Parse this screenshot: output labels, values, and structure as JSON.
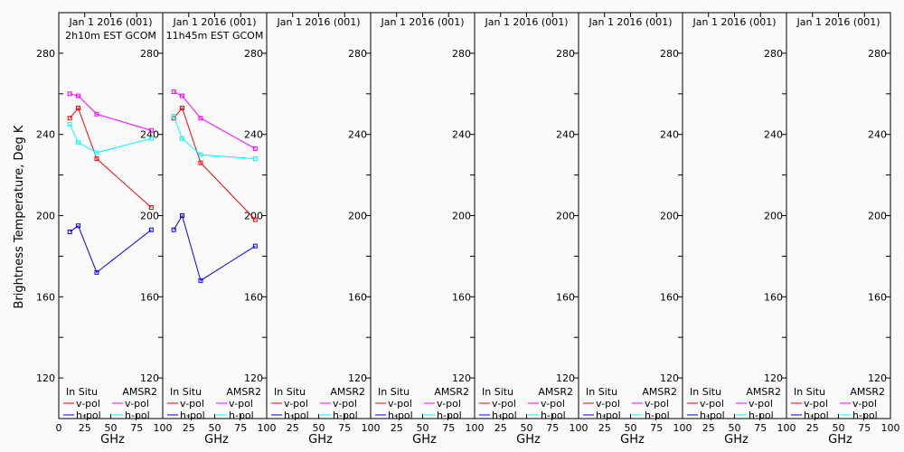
{
  "chart_data": {
    "type": "line",
    "ylabel": "Brightness Temperature, Deg K",
    "xlabel": "GHz",
    "xlim": [
      0,
      100
    ],
    "ylim": [
      100,
      300
    ],
    "xticks": [
      0,
      25,
      50,
      75,
      100
    ],
    "xtick_labels": [
      "0",
      "25",
      "50",
      "75",
      "100"
    ],
    "yticks": [
      120,
      160,
      200,
      240,
      280
    ],
    "ytick_labels": [
      "120",
      "160",
      "200",
      "240",
      "280"
    ],
    "legend": {
      "group_labels": [
        "In Situ",
        "AMSR2"
      ],
      "entries": [
        {
          "group": 0,
          "label": "v-pol",
          "color": "#ff0000"
        },
        {
          "group": 0,
          "label": "h-pol",
          "color": "#0000ff"
        },
        {
          "group": 1,
          "label": "v-pol",
          "color": "#ff00ff"
        },
        {
          "group": 1,
          "label": "h-pol",
          "color": "#00ffff"
        }
      ]
    },
    "panels": [
      {
        "title": "Jan 1 2016 (001)",
        "subtitle": "2h10m EST GCOM",
        "series": [
          {
            "name": "AMSR2 v-pol",
            "color": "#ff00ff",
            "x": [
              10.65,
              18.7,
              36.5,
              89
            ],
            "y": [
              260,
              259,
              250,
              242
            ]
          },
          {
            "name": "In Situ v-pol",
            "color": "#ff0000",
            "x": [
              10.65,
              18.7,
              36.5,
              89
            ],
            "y": [
              248,
              253,
              228,
              204
            ]
          },
          {
            "name": "AMSR2 h-pol",
            "color": "#00ffff",
            "x": [
              10.65,
              18.7,
              36.5,
              89
            ],
            "y": [
              245,
              236,
              231,
              238
            ]
          },
          {
            "name": "In Situ h-pol",
            "color": "#0000ff",
            "x": [
              10.65,
              18.7,
              36.5,
              89
            ],
            "y": [
              192,
              195,
              172,
              193
            ]
          }
        ]
      },
      {
        "title": "Jan 1 2016 (001)",
        "subtitle": "11h45m EST GCOM",
        "series": [
          {
            "name": "AMSR2 v-pol",
            "color": "#ff00ff",
            "x": [
              10.65,
              18.7,
              36.5,
              89
            ],
            "y": [
              261,
              259,
              248,
              233
            ]
          },
          {
            "name": "In Situ v-pol",
            "color": "#ff0000",
            "x": [
              10.65,
              18.7,
              36.5,
              89
            ],
            "y": [
              248,
              253,
              226,
              198
            ]
          },
          {
            "name": "AMSR2 h-pol",
            "color": "#00ffff",
            "x": [
              10.65,
              18.7,
              36.5,
              89
            ],
            "y": [
              249,
              238,
              230,
              228
            ]
          },
          {
            "name": "In Situ h-pol",
            "color": "#0000ff",
            "x": [
              10.65,
              18.7,
              36.5,
              89
            ],
            "y": [
              193,
              200,
              168,
              185
            ]
          }
        ]
      },
      {
        "title": "Jan 1 2016 (001)",
        "subtitle": "",
        "series": []
      },
      {
        "title": "Jan 1 2016 (001)",
        "subtitle": "",
        "series": []
      },
      {
        "title": "Jan 1 2016 (001)",
        "subtitle": "",
        "series": []
      },
      {
        "title": "Jan 1 2016 (001)",
        "subtitle": "",
        "series": []
      },
      {
        "title": "Jan 1 2016 (001)",
        "subtitle": "",
        "series": []
      },
      {
        "title": "Jan 1 2016 (001)",
        "subtitle": "",
        "series": []
      }
    ]
  }
}
